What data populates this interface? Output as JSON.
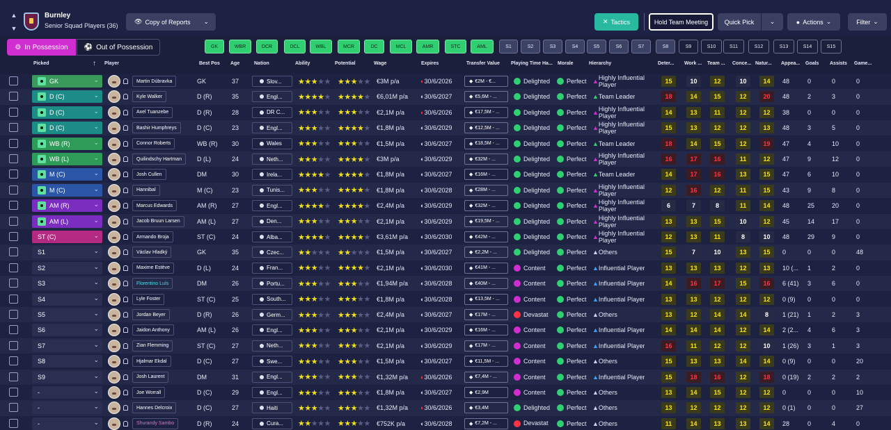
{
  "club": {
    "name": "Burnley",
    "subtitle": "Senior Squad Players (36)"
  },
  "toolbar": {
    "reports": "Copy of Reports",
    "tactics": "Tactics",
    "meeting": "Hold Team Meeting",
    "quick_pick": "Quick Pick",
    "actions": "Actions",
    "filter": "Filter"
  },
  "tabs": {
    "in": "In Possession",
    "out": "Out of Possession"
  },
  "positions": [
    "GK",
    "WBR",
    "DCR",
    "DCL",
    "WBL",
    "MCR",
    "DC",
    "MCL",
    "AMR",
    "STC",
    "AML",
    "S1",
    "S2",
    "S3",
    "S4",
    "S5",
    "S6",
    "S7",
    "S8",
    "S9",
    "S10",
    "S11",
    "S12",
    "S13",
    "S14",
    "S15"
  ],
  "columns": [
    "Picked",
    "Player",
    "Best Pos",
    "Age",
    "Nation",
    "Ability",
    "Potential",
    "Wage",
    "Expires",
    "Transfer Value",
    "Playing Time Ha...",
    "Morale",
    "Hierarchy",
    "Deter...",
    "Work ...",
    "Team ...",
    "Conce...",
    "Natur...",
    "Appea...",
    "Goals",
    "Assists",
    "Game..."
  ],
  "players": [
    {
      "pick": "GK",
      "name": "Martin Dúbravka",
      "pos": "GK",
      "age": "37",
      "nat": "Slov...",
      "ab": 3,
      "pot": 3,
      "wage": "€3M p/a",
      "exp": "30/6/2026",
      "tv": "€2M - €...",
      "pt": "Delighted",
      "mor": "Perfect",
      "hier": "Highly Influential Player",
      "d": [
        "15",
        "10",
        "12",
        "10",
        "14"
      ],
      "apps": "48",
      "g": "0",
      "a": "0",
      "gm": "0"
    },
    {
      "pick": "D (C)",
      "name": "Kyle Walker",
      "pos": "D (R)",
      "age": "35",
      "nat": "Engl...",
      "ab": 4,
      "pot": 4,
      "wage": "€6,01M p/a",
      "exp": "30/6/2027",
      "tv": "€5,6M - ...",
      "pt": "Delighted",
      "mor": "Perfect",
      "hier": "Team Leader",
      "d": [
        "18",
        "14",
        "15",
        "12",
        "20"
      ],
      "apps": "48",
      "g": "2",
      "a": "3",
      "gm": "0"
    },
    {
      "pick": "D (C)",
      "name": "Axel Tuanzebe",
      "pos": "D (R)",
      "age": "28",
      "nat": "DR C...",
      "ab": 3,
      "pot": 3,
      "wage": "€2,1M p/a",
      "exp": "30/6/2026",
      "tv": "€17,5M - ...",
      "pt": "Delighted",
      "mor": "Perfect",
      "hier": "Highly Influential Player",
      "d": [
        "14",
        "13",
        "11",
        "12",
        "12"
      ],
      "apps": "38",
      "g": "0",
      "a": "0",
      "gm": "0"
    },
    {
      "pick": "D (C)",
      "name": "Bashir Humphreys",
      "pos": "D (C)",
      "age": "23",
      "nat": "Engl...",
      "ab": 3,
      "pot": 4,
      "wage": "€1,8M p/a",
      "exp": "30/6/2029",
      "tv": "€12,5M - ...",
      "pt": "Delighted",
      "mor": "Perfect",
      "hier": "Highly Influential Player",
      "d": [
        "15",
        "13",
        "12",
        "12",
        "13"
      ],
      "apps": "48",
      "g": "3",
      "a": "5",
      "gm": "0"
    },
    {
      "pick": "WB (R)",
      "name": "Connor Roberts",
      "pos": "WB (R)",
      "age": "30",
      "nat": "Wales",
      "ab": 3,
      "pot": 3,
      "wage": "€1,5M p/a",
      "exp": "30/6/2027",
      "tv": "€18,5M - ...",
      "pt": "Delighted",
      "mor": "Perfect",
      "hier": "Team Leader",
      "d": [
        "18",
        "14",
        "15",
        "12",
        "19"
      ],
      "apps": "47",
      "g": "4",
      "a": "10",
      "gm": "0"
    },
    {
      "pick": "WB (L)",
      "name": "Quilindschy Hartman",
      "pos": "D (L)",
      "age": "24",
      "nat": "Neth...",
      "ab": 3,
      "pot": 4,
      "wage": "€3M p/a",
      "exp": "30/6/2029",
      "tv": "€32M - ...",
      "pt": "Delighted",
      "mor": "Perfect",
      "hier": "Highly Influential Player",
      "d": [
        "16",
        "17",
        "16",
        "11",
        "12"
      ],
      "apps": "47",
      "g": "9",
      "a": "12",
      "gm": "0"
    },
    {
      "pick": "M (C)",
      "name": "Josh Cullen",
      "pos": "DM",
      "age": "30",
      "nat": "Irela...",
      "ab": 4,
      "pot": 4,
      "wage": "€1,8M p/a",
      "exp": "30/6/2027",
      "tv": "€16M - ...",
      "pt": "Delighted",
      "mor": "Perfect",
      "hier": "Team Leader",
      "d": [
        "14",
        "17",
        "16",
        "13",
        "15"
      ],
      "apps": "47",
      "g": "6",
      "a": "10",
      "gm": "0"
    },
    {
      "pick": "M (C)",
      "name": "Hannibal",
      "pos": "M (C)",
      "age": "23",
      "nat": "Tunis...",
      "ab": 3,
      "pot": 4,
      "wage": "€1,8M p/a",
      "exp": "30/6/2028",
      "tv": "€28M - ...",
      "pt": "Delighted",
      "mor": "Perfect",
      "hier": "Highly Influential Player",
      "d": [
        "12",
        "16",
        "12",
        "11",
        "15"
      ],
      "apps": "43",
      "g": "9",
      "a": "8",
      "gm": "0"
    },
    {
      "pick": "AM (R)",
      "name": "Marcus Edwards",
      "pos": "AM (R)",
      "age": "27",
      "nat": "Engl...",
      "ab": 4,
      "pot": 4,
      "wage": "€2,4M p/a",
      "exp": "30/6/2029",
      "tv": "€32M - ...",
      "pt": "Delighted",
      "mor": "Perfect",
      "hier": "Highly Influential Player",
      "d": [
        "6",
        "7",
        "8",
        "11",
        "14"
      ],
      "apps": "48",
      "g": "25",
      "a": "20",
      "gm": "0"
    },
    {
      "pick": "AM (L)",
      "name": "Jacob Bruun Larsen",
      "pos": "AM (L)",
      "age": "27",
      "nat": "Den...",
      "ab": 3,
      "pot": 3,
      "wage": "€2,1M p/a",
      "exp": "30/6/2029",
      "tv": "€19,5M - ...",
      "pt": "Delighted",
      "mor": "Perfect",
      "hier": "Highly Influential Player",
      "d": [
        "13",
        "13",
        "15",
        "10",
        "12"
      ],
      "apps": "45",
      "g": "14",
      "a": "17",
      "gm": "0"
    },
    {
      "pick": "ST (C)",
      "name": "Armando Broja",
      "pos": "ST (C)",
      "age": "24",
      "nat": "Alba...",
      "ab": 4,
      "pot": 4,
      "wage": "€3,61M p/a",
      "exp": "30/6/2030",
      "tv": "€42M - ...",
      "pt": "Delighted",
      "mor": "Perfect",
      "hier": "Highly Influential Player",
      "d": [
        "12",
        "13",
        "11",
        "8",
        "10"
      ],
      "apps": "48",
      "g": "29",
      "a": "9",
      "gm": "0"
    },
    {
      "pick": "S1",
      "name": "Václav Hladký",
      "pos": "GK",
      "age": "35",
      "nat": "Czec...",
      "ab": 2,
      "pot": 2,
      "wage": "€1,5M p/a",
      "exp": "30/6/2027",
      "tv": "€2,2M - ...",
      "pt": "Delighted",
      "mor": "Perfect",
      "hier": "Others",
      "d": [
        "15",
        "7",
        "10",
        "13",
        "15"
      ],
      "apps": "0",
      "g": "0",
      "a": "0",
      "gm": "48"
    },
    {
      "pick": "S2",
      "name": "Maxime Estève",
      "pos": "D (L)",
      "age": "24",
      "nat": "Fran...",
      "ab": 3,
      "pot": 4,
      "wage": "€2,1M p/a",
      "exp": "30/6/2030",
      "tv": "€41M - ...",
      "pt": "Content",
      "mor": "Perfect",
      "hier": "Influential Player",
      "d": [
        "13",
        "13",
        "13",
        "12",
        "13"
      ],
      "apps": "10 (...",
      "g": "1",
      "a": "2",
      "gm": "0"
    },
    {
      "pick": "S3",
      "name": "Florentino Luís",
      "pos": "DM",
      "age": "26",
      "nat": "Portu...",
      "ab": 3,
      "pot": 3,
      "wage": "€1,94M p/a",
      "exp": "30/6/2028",
      "tv": "€40M - ...",
      "pt": "Content",
      "mor": "Perfect",
      "hier": "Influential Player",
      "d": [
        "14",
        "16",
        "17",
        "15",
        "16"
      ],
      "apps": "6 (41)",
      "g": "3",
      "a": "6",
      "gm": "0"
    },
    {
      "pick": "S4",
      "name": "Lyle Foster",
      "pos": "ST (C)",
      "age": "25",
      "nat": "South...",
      "ab": 3,
      "pot": 3,
      "wage": "€1,8M p/a",
      "exp": "30/6/2028",
      "tv": "€13,5M - ...",
      "pt": "Content",
      "mor": "Perfect",
      "hier": "Influential Player",
      "d": [
        "13",
        "13",
        "12",
        "12",
        "12"
      ],
      "apps": "0 (9)",
      "g": "0",
      "a": "0",
      "gm": "0"
    },
    {
      "pick": "S5",
      "name": "Jordan Beyer",
      "pos": "D (R)",
      "age": "26",
      "nat": "Germ...",
      "ab": 3,
      "pot": 3,
      "wage": "€2,4M p/a",
      "exp": "30/6/2027",
      "tv": "€17M - ...",
      "pt": "Devastated",
      "mor": "Perfect",
      "hier": "Others",
      "d": [
        "13",
        "12",
        "14",
        "14",
        "8"
      ],
      "apps": "1 (21)",
      "g": "1",
      "a": "2",
      "gm": "3"
    },
    {
      "pick": "S6",
      "name": "Jaidon Anthony",
      "pos": "AM (L)",
      "age": "26",
      "nat": "Engl...",
      "ab": 3,
      "pot": 3,
      "wage": "€2,1M p/a",
      "exp": "30/6/2029",
      "tv": "€16M - ...",
      "pt": "Content",
      "mor": "Perfect",
      "hier": "Influential Player",
      "d": [
        "14",
        "14",
        "14",
        "12",
        "14"
      ],
      "apps": "2 (2...",
      "g": "4",
      "a": "6",
      "gm": "3"
    },
    {
      "pick": "S7",
      "name": "Zian Flemming",
      "pos": "ST (C)",
      "age": "27",
      "nat": "Neth...",
      "ab": 3,
      "pot": 3,
      "wage": "€2,1M p/a",
      "exp": "30/6/2029",
      "tv": "€17M - ...",
      "pt": "Content",
      "mor": "Perfect",
      "hier": "Influential Player",
      "d": [
        "16",
        "11",
        "12",
        "12",
        "10"
      ],
      "apps": "1 (26)",
      "g": "3",
      "a": "1",
      "gm": "3"
    },
    {
      "pick": "S8",
      "name": "Hjalmar Ekdal",
      "pos": "D (C)",
      "age": "27",
      "nat": "Swe...",
      "ab": 3,
      "pot": 3,
      "wage": "€1,5M p/a",
      "exp": "30/6/2027",
      "tv": "€11,5M - ...",
      "pt": "Content",
      "mor": "Perfect",
      "hier": "Others",
      "d": [
        "15",
        "13",
        "13",
        "14",
        "14"
      ],
      "apps": "0 (9)",
      "g": "0",
      "a": "0",
      "gm": "20"
    },
    {
      "pick": "S9",
      "name": "Josh Laurent",
      "pos": "DM",
      "age": "31",
      "nat": "Engl...",
      "ab": 3,
      "pot": 3,
      "wage": "€1,32M p/a",
      "exp": "30/6/2026",
      "tv": "€7,4M - ...",
      "pt": "Content",
      "mor": "Perfect",
      "hier": "Influential Player",
      "d": [
        "15",
        "18",
        "16",
        "12",
        "18"
      ],
      "apps": "0 (19)",
      "g": "2",
      "a": "2",
      "gm": "2"
    },
    {
      "pick": "-",
      "name": "Joe Worrall",
      "pos": "D (C)",
      "age": "29",
      "nat": "Engl...",
      "ab": 3,
      "pot": 3,
      "wage": "€1,8M p/a",
      "exp": "30/6/2027",
      "tv": "€2,9M",
      "pt": "Content",
      "mor": "Perfect",
      "hier": "Others",
      "d": [
        "13",
        "14",
        "15",
        "12",
        "12"
      ],
      "apps": "0",
      "g": "0",
      "a": "0",
      "gm": "10"
    },
    {
      "pick": "-",
      "name": "Hannes Delcroix",
      "pos": "D (C)",
      "age": "27",
      "nat": "Haiti",
      "ab": 3,
      "pot": 3,
      "wage": "€1,32M p/a",
      "exp": "30/6/2026",
      "tv": "€3,4M",
      "pt": "Delighted",
      "mor": "Perfect",
      "hier": "Others",
      "d": [
        "13",
        "12",
        "12",
        "12",
        "12"
      ],
      "apps": "0 (1)",
      "g": "0",
      "a": "0",
      "gm": "27"
    },
    {
      "pick": "-",
      "name": "Shurandy Sambo",
      "pos": "D (R)",
      "age": "24",
      "nat": "Cura...",
      "ab": 2,
      "pot": 3,
      "wage": "€752K p/a",
      "exp": "30/6/2028",
      "tv": "€7,2M - ...",
      "pt": "Devastated",
      "mor": "Perfect",
      "hier": "Others",
      "d": [
        "11",
        "14",
        "13",
        "13",
        "14"
      ],
      "apps": "28",
      "g": "0",
      "a": "4",
      "gm": "0"
    }
  ],
  "colors": {
    "accent_tab": "#d12ed1",
    "tactics": "#29b9a1",
    "star": "#f0df1c",
    "attr_good": "#f7e21a",
    "attr_top": "#ff3344"
  }
}
